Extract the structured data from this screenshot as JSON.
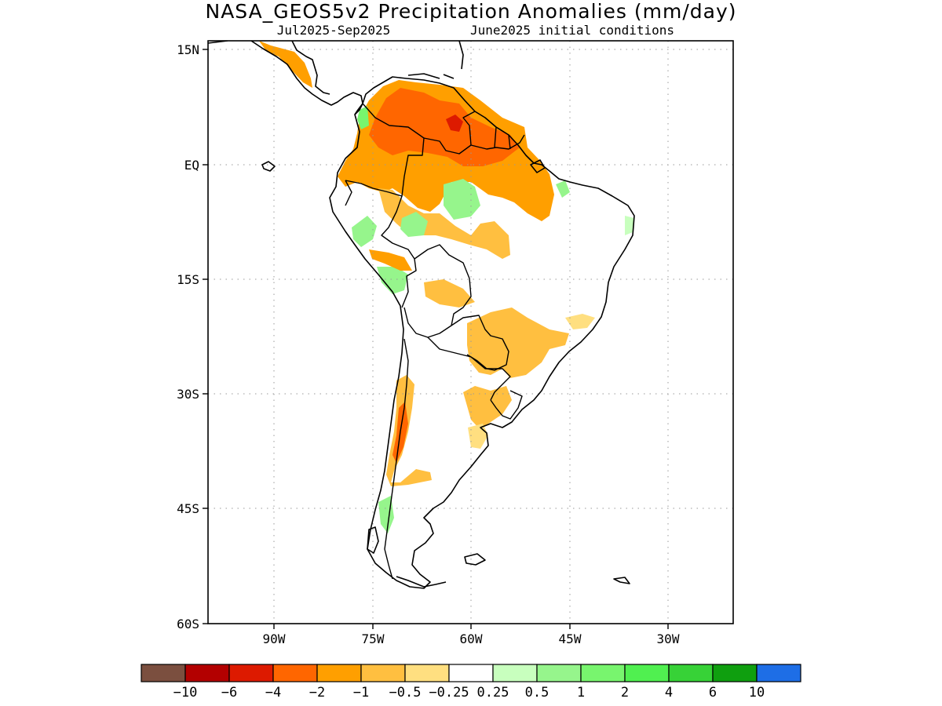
{
  "title": "NASA_GEOS5v2 Precipitation Anomalies (mm/day)",
  "subtitle_left": "Jul2025-Sep2025",
  "subtitle_right": "June2025 initial conditions",
  "lat_labels": [
    "15N",
    "EQ",
    "15S",
    "30S",
    "45S",
    "60S"
  ],
  "lon_labels": [
    "90W",
    "75W",
    "60W",
    "45W",
    "30W"
  ],
  "colorbar": {
    "colors": [
      "#7b4f3f",
      "#b30000",
      "#dd1a00",
      "#ff6600",
      "#ff9f00",
      "#ffbf40",
      "#ffdf80",
      "#ffffff",
      "#c8ffbe",
      "#96f58c",
      "#78f56e",
      "#50f050",
      "#37d237",
      "#0f9f0f",
      "#1e6ee6"
    ],
    "labels": [
      "-10",
      "-6",
      "-4",
      "-2",
      "-1",
      "-0.5",
      "-0.25",
      "0.25",
      "0.5",
      "1",
      "2",
      "4",
      "6",
      "10"
    ]
  }
}
